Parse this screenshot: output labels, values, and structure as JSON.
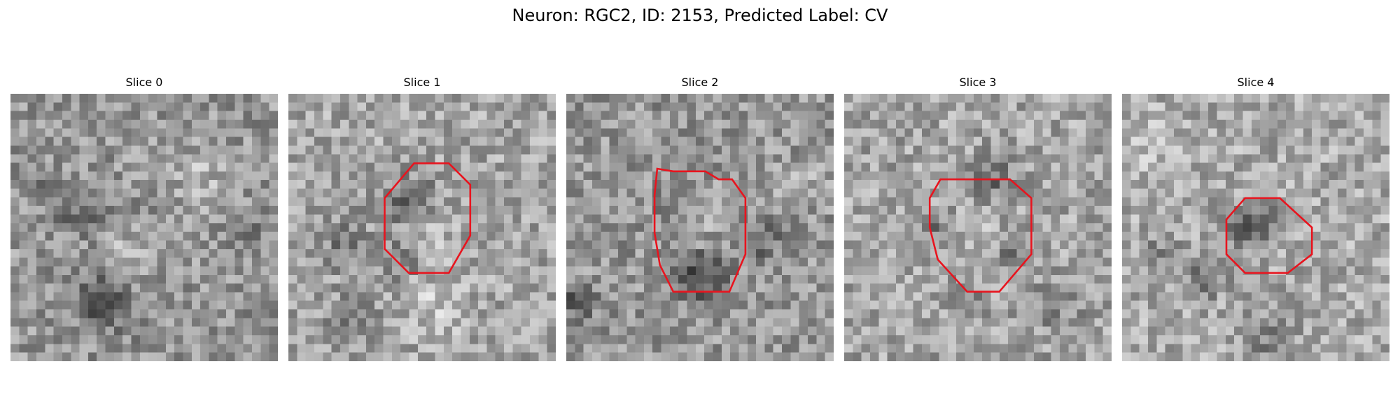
{
  "figure": {
    "suptitle": "Neuron: RGC2, ID: 2153, Predicted Label: CV",
    "colormap": "grayscale",
    "outline_color": "#e8141e"
  },
  "panels": [
    {
      "title": "Slice 0",
      "has_outline": false
    },
    {
      "title": "Slice 1",
      "has_outline": true
    },
    {
      "title": "Slice 2",
      "has_outline": true
    },
    {
      "title": "Slice 3",
      "has_outline": true
    },
    {
      "title": "Slice 4",
      "has_outline": true
    }
  ]
}
